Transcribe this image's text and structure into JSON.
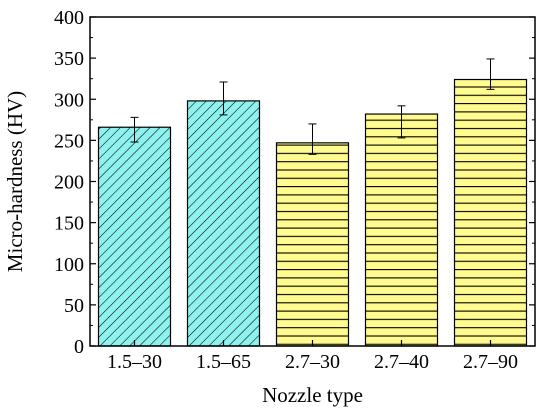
{
  "chart_data": {
    "type": "bar",
    "title": "",
    "xlabel": "Nozzle type",
    "ylabel": "Micro-hardness (HV)",
    "ylim": [
      0,
      400
    ],
    "yticks": [
      0,
      50,
      100,
      150,
      200,
      250,
      300,
      350,
      400
    ],
    "grid": false,
    "legend": "none",
    "categories": [
      "1.5–30",
      "1.5–65",
      "2.7–30",
      "2.7–40",
      "2.7–90"
    ],
    "values": [
      266,
      298,
      247,
      282,
      324
    ],
    "error_low": [
      248,
      281,
      233,
      253,
      312
    ],
    "error_high": [
      278,
      321,
      270,
      292,
      349
    ],
    "bar_fill": [
      "#8ef3ef",
      "#8ef3ef",
      "#fffb8e",
      "#fffb8e",
      "#fffb8e"
    ],
    "bar_pattern": [
      "diagonal",
      "diagonal",
      "horizontal",
      "horizontal",
      "horizontal"
    ]
  }
}
